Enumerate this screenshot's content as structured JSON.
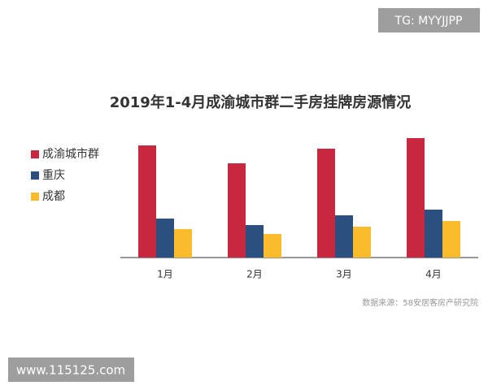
{
  "chart_data": {
    "type": "bar",
    "title": "2019年1-4月成渝城市群二手房挂牌房源情况",
    "categories": [
      "1月",
      "2月",
      "3月",
      "4月"
    ],
    "series": [
      {
        "name": "成渝城市群",
        "color": "#c8283f",
        "values": [
          138,
          116,
          134,
          147
        ]
      },
      {
        "name": "重庆",
        "color": "#2b4f7e",
        "values": [
          48,
          40,
          52,
          59
        ]
      },
      {
        "name": "成都",
        "color": "#fbbc2b",
        "values": [
          35,
          29,
          38,
          45
        ]
      }
    ],
    "ylim": [
      0,
      150
    ],
    "legend": "left",
    "source": "数据来源：58安居客房产研究院",
    "watermarks": [
      "TG: MYYJJPP",
      "www.115125.com"
    ]
  }
}
